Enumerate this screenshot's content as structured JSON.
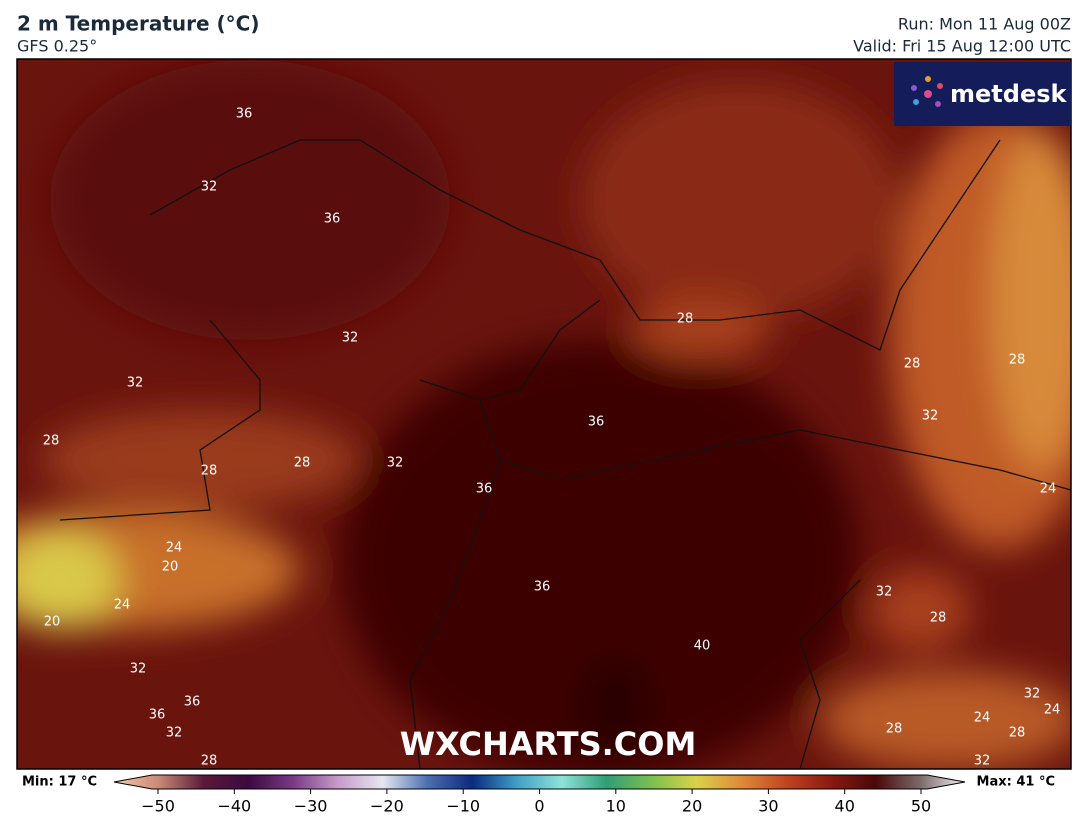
{
  "header": {
    "title": "2 m Temperature (°C)",
    "subtitle": "GFS 0.25°",
    "run": "Run: Mon 11 Aug 00Z",
    "valid": "Valid: Fri 15 Aug 12:00 UTC"
  },
  "logo": "metdesk",
  "watermark": "WXCHARTS.COM",
  "contour_labels": [
    36,
    32,
    36,
    32,
    32,
    28,
    28,
    28,
    32,
    36,
    36,
    28,
    28,
    28,
    32,
    24,
    24,
    20,
    24,
    20,
    36,
    32,
    28,
    40,
    32,
    36,
    36,
    32,
    28,
    32,
    24,
    24,
    28,
    28,
    32
  ],
  "colorbar": {
    "min_label": "Min: 17 °C",
    "max_label": "Max: 41 °C",
    "range": [
      -50,
      50
    ],
    "ticks": [
      {
        "value": -50,
        "label": "−50"
      },
      {
        "value": -40,
        "label": "−40"
      },
      {
        "value": -30,
        "label": "−30"
      },
      {
        "value": -20,
        "label": "−20"
      },
      {
        "value": -10,
        "label": "−10"
      },
      0,
      10,
      20,
      30,
      40,
      50
    ],
    "colors": [
      "#f6c7a6",
      "#c98a77",
      "#5a1a3a",
      "#3b0a3f",
      "#7a3a86",
      "#c79bc9",
      "#e6e6f0",
      "#4b6fb0",
      "#0b2a80",
      "#3fa0c6",
      "#8fe3d8",
      "#2f9e74",
      "#7bbf4f",
      "#d9d24a",
      "#e08a3a",
      "#c0451f",
      "#8a1a12",
      "#4a0808",
      "#7a6a6a",
      "#f5f0f0"
    ]
  }
}
